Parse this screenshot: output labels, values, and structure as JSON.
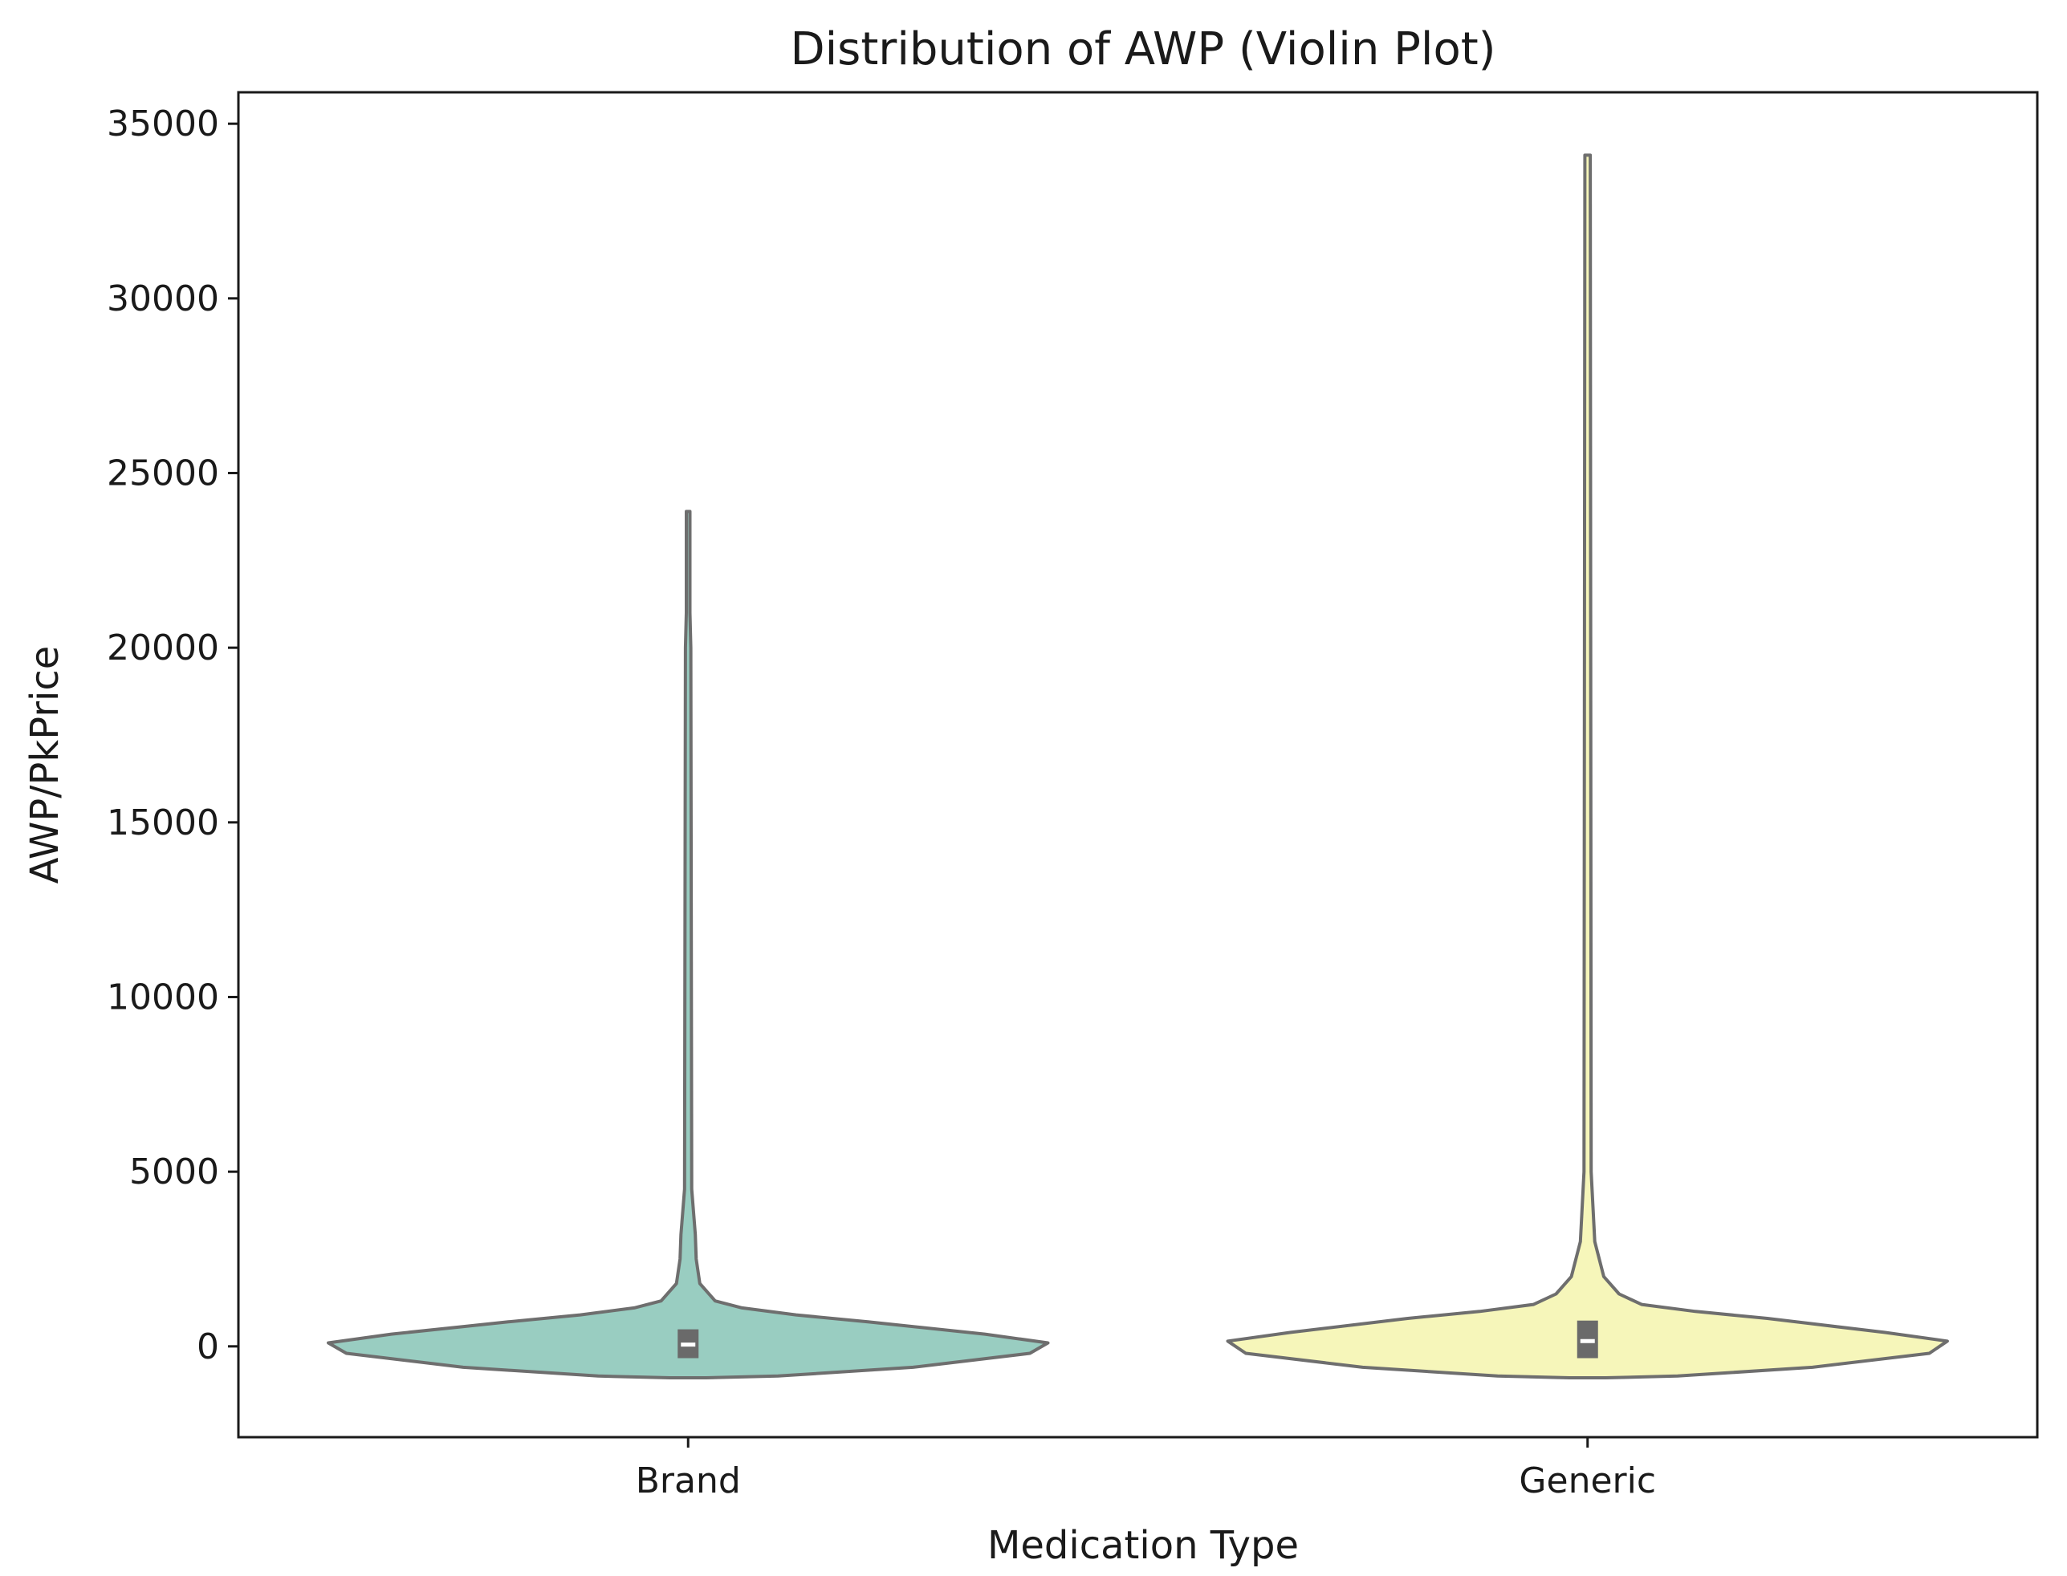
{
  "chart_data": {
    "type": "violin",
    "title": "Distribution of AWP (Violin Plot)",
    "xlabel": "Medication Type",
    "ylabel": "AWP/PkPrice",
    "ylim": [
      -2600,
      35900
    ],
    "yticks": [
      0,
      5000,
      10000,
      15000,
      20000,
      25000,
      30000,
      35000
    ],
    "grid": false,
    "legend": "none",
    "categories": [
      "Brand",
      "Generic"
    ],
    "series": [
      {
        "category": "Brand",
        "color": "#99cdc1",
        "stroke": "#6e6e6e",
        "min_value": -900,
        "max_value": 23900,
        "box": {
          "q1": -200,
          "median": 50,
          "q3": 350
        },
        "profile": [
          {
            "y": -900,
            "half_width": 0.02
          },
          {
            "y": -850,
            "half_width": 0.1
          },
          {
            "y": -600,
            "half_width": 0.25
          },
          {
            "y": -200,
            "half_width": 0.38
          },
          {
            "y": 100,
            "half_width": 0.4
          },
          {
            "y": 350,
            "half_width": 0.33
          },
          {
            "y": 700,
            "half_width": 0.2
          },
          {
            "y": 900,
            "half_width": 0.12
          },
          {
            "y": 1100,
            "half_width": 0.06
          },
          {
            "y": 1300,
            "half_width": 0.03
          },
          {
            "y": 1800,
            "half_width": 0.013
          },
          {
            "y": 2500,
            "half_width": 0.009
          },
          {
            "y": 3200,
            "half_width": 0.008
          },
          {
            "y": 4500,
            "half_width": 0.004
          },
          {
            "y": 20000,
            "half_width": 0.003
          },
          {
            "y": 21000,
            "half_width": 0.002
          },
          {
            "y": 23900,
            "half_width": 0.002
          }
        ]
      },
      {
        "category": "Generic",
        "color": "#f6f6ba",
        "stroke": "#6e6e6e",
        "min_value": -900,
        "max_value": 34100,
        "box": {
          "q1": -200,
          "median": 150,
          "q3": 600
        },
        "profile": [
          {
            "y": -900,
            "half_width": 0.02
          },
          {
            "y": -850,
            "half_width": 0.1
          },
          {
            "y": -600,
            "half_width": 0.25
          },
          {
            "y": -200,
            "half_width": 0.38
          },
          {
            "y": 150,
            "half_width": 0.4
          },
          {
            "y": 400,
            "half_width": 0.33
          },
          {
            "y": 800,
            "half_width": 0.2
          },
          {
            "y": 1000,
            "half_width": 0.12
          },
          {
            "y": 1200,
            "half_width": 0.06
          },
          {
            "y": 1500,
            "half_width": 0.035
          },
          {
            "y": 2000,
            "half_width": 0.018
          },
          {
            "y": 3000,
            "half_width": 0.008
          },
          {
            "y": 5000,
            "half_width": 0.004
          },
          {
            "y": 34100,
            "half_width": 0.003
          }
        ]
      }
    ]
  }
}
